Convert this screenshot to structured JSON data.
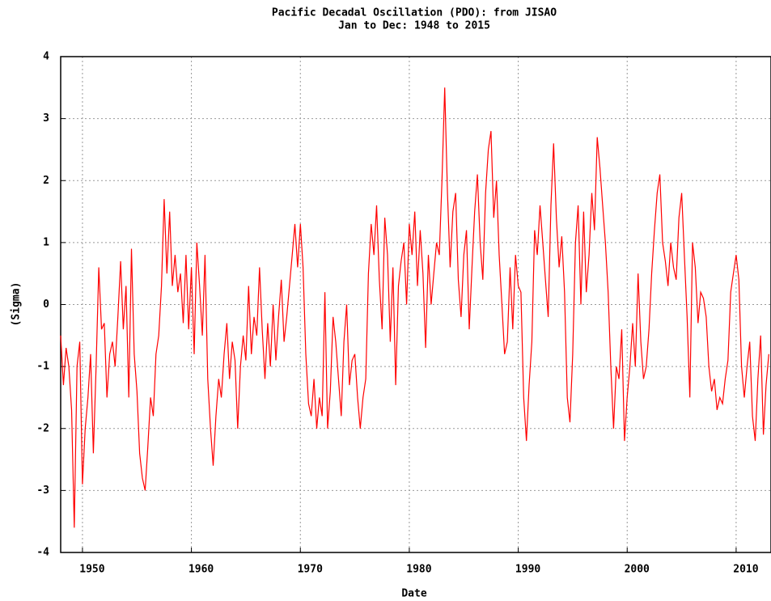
{
  "chart_data": {
    "type": "line",
    "title": "Pacific Decadal Oscillation (PDO): from JISAO",
    "subtitle": "Jan to Dec: 1948 to 2015",
    "x_label": "Date",
    "y_label": "(Sigma)",
    "xlim": [
      1948,
      2013.2
    ],
    "ylim": [
      -4,
      4
    ],
    "xticks": [
      1950,
      1960,
      1970,
      1980,
      1990,
      2000,
      2010
    ],
    "yticks": [
      -4,
      -3,
      -2,
      -1,
      0,
      1,
      2,
      3,
      4
    ],
    "grid": true,
    "x": [
      1948,
      1948.25,
      1948.5,
      1948.75,
      1949,
      1949.25,
      1949.5,
      1949.75,
      1950,
      1950.25,
      1950.5,
      1950.75,
      1951,
      1951.25,
      1951.5,
      1951.75,
      1952,
      1952.25,
      1952.5,
      1952.75,
      1953,
      1953.25,
      1953.5,
      1953.75,
      1954,
      1954.25,
      1954.5,
      1954.75,
      1955,
      1955.25,
      1955.5,
      1955.75,
      1956,
      1956.25,
      1956.5,
      1956.75,
      1957,
      1957.25,
      1957.5,
      1957.75,
      1958,
      1958.25,
      1958.5,
      1958.75,
      1959,
      1959.25,
      1959.5,
      1959.75,
      1960,
      1960.25,
      1960.5,
      1960.75,
      1961,
      1961.25,
      1961.5,
      1961.75,
      1962,
      1962.25,
      1962.5,
      1962.75,
      1963,
      1963.25,
      1963.5,
      1963.75,
      1964,
      1964.25,
      1964.5,
      1964.75,
      1965,
      1965.25,
      1965.5,
      1965.75,
      1966,
      1966.25,
      1966.5,
      1966.75,
      1967,
      1967.25,
      1967.5,
      1967.75,
      1968,
      1968.25,
      1968.5,
      1968.75,
      1969,
      1969.25,
      1969.5,
      1969.75,
      1970,
      1970.25,
      1970.5,
      1970.75,
      1971,
      1971.25,
      1971.5,
      1971.75,
      1972,
      1972.25,
      1972.5,
      1972.75,
      1973,
      1973.25,
      1973.5,
      1973.75,
      1974,
      1974.25,
      1974.5,
      1974.75,
      1975,
      1975.25,
      1975.5,
      1975.75,
      1976,
      1976.25,
      1976.5,
      1976.75,
      1977,
      1977.25,
      1977.5,
      1977.75,
      1978,
      1978.25,
      1978.5,
      1978.75,
      1979,
      1979.25,
      1979.5,
      1979.75,
      1980,
      1980.25,
      1980.5,
      1980.75,
      1981,
      1981.25,
      1981.5,
      1981.75,
      1982,
      1982.25,
      1982.5,
      1982.75,
      1983,
      1983.25,
      1983.5,
      1983.75,
      1984,
      1984.25,
      1984.5,
      1984.75,
      1985,
      1985.25,
      1985.5,
      1985.75,
      1986,
      1986.25,
      1986.5,
      1986.75,
      1987,
      1987.25,
      1987.5,
      1987.75,
      1988,
      1988.25,
      1988.5,
      1988.75,
      1989,
      1989.25,
      1989.5,
      1989.75,
      1990,
      1990.25,
      1990.5,
      1990.75,
      1991,
      1991.25,
      1991.5,
      1991.75,
      1992,
      1992.25,
      1992.5,
      1992.75,
      1993,
      1993.25,
      1993.5,
      1993.75,
      1994,
      1994.25,
      1994.5,
      1994.75,
      1995,
      1995.25,
      1995.5,
      1995.75,
      1996,
      1996.25,
      1996.5,
      1996.75,
      1997,
      1997.25,
      1997.5,
      1997.75,
      1998,
      1998.25,
      1998.5,
      1998.75,
      1999,
      1999.25,
      1999.5,
      1999.75,
      2000,
      2000.25,
      2000.5,
      2000.75,
      2001,
      2001.25,
      2001.5,
      2001.75,
      2002,
      2002.25,
      2002.5,
      2002.75,
      2003,
      2003.25,
      2003.5,
      2003.75,
      2004,
      2004.25,
      2004.5,
      2004.75,
      2005,
      2005.25,
      2005.5,
      2005.75,
      2006,
      2006.25,
      2006.5,
      2006.75,
      2007,
      2007.25,
      2007.5,
      2007.75,
      2008,
      2008.25,
      2008.5,
      2008.75,
      2009,
      2009.25,
      2009.5,
      2009.75,
      2010,
      2010.25,
      2010.5,
      2010.75,
      2011,
      2011.25,
      2011.5,
      2011.75,
      2012,
      2012.25,
      2012.5,
      2012.75,
      2013
    ],
    "series": [
      {
        "name": "PDO",
        "color": "#ff0000",
        "values": [
          -0.5,
          -1.3,
          -0.7,
          -1.0,
          -1.7,
          -3.6,
          -1.0,
          -0.6,
          -2.9,
          -2.0,
          -1.5,
          -0.8,
          -2.4,
          -1.0,
          0.6,
          -0.4,
          -0.3,
          -1.5,
          -0.8,
          -0.6,
          -1.0,
          -0.2,
          0.7,
          -0.4,
          0.3,
          -1.5,
          0.9,
          -0.8,
          -1.4,
          -2.4,
          -2.8,
          -3.0,
          -2.3,
          -1.5,
          -1.8,
          -0.8,
          -0.5,
          0.3,
          1.7,
          0.5,
          1.5,
          0.3,
          0.8,
          0.2,
          0.5,
          -0.3,
          0.8,
          -0.4,
          0.6,
          -0.8,
          1.0,
          0.3,
          -0.5,
          0.8,
          -1.2,
          -2.0,
          -2.6,
          -1.8,
          -1.2,
          -1.5,
          -0.8,
          -0.3,
          -1.2,
          -0.6,
          -0.9,
          -2.0,
          -1.0,
          -0.5,
          -0.9,
          0.3,
          -0.8,
          -0.2,
          -0.5,
          0.6,
          -0.4,
          -1.2,
          -0.3,
          -1.0,
          0.0,
          -0.9,
          -0.2,
          0.4,
          -0.6,
          -0.2,
          0.3,
          0.8,
          1.3,
          0.6,
          1.3,
          0.6,
          -0.8,
          -1.6,
          -1.8,
          -1.2,
          -2.0,
          -1.5,
          -1.8,
          0.2,
          -2.0,
          -1.4,
          -0.2,
          -0.6,
          -1.2,
          -1.8,
          -0.6,
          0.0,
          -1.3,
          -0.9,
          -0.8,
          -1.5,
          -2.0,
          -1.5,
          -1.2,
          0.5,
          1.3,
          0.8,
          1.6,
          0.4,
          -0.4,
          1.4,
          0.8,
          -0.6,
          0.6,
          -1.3,
          0.3,
          0.7,
          1.0,
          0.0,
          1.3,
          0.8,
          1.5,
          0.3,
          1.2,
          0.5,
          -0.7,
          0.8,
          0.0,
          0.5,
          1.0,
          0.8,
          2.0,
          3.5,
          1.8,
          0.6,
          1.5,
          1.8,
          0.4,
          -0.2,
          0.8,
          1.2,
          -0.4,
          0.6,
          1.5,
          2.1,
          1.0,
          0.4,
          1.8,
          2.5,
          2.8,
          1.4,
          2.0,
          0.8,
          0.0,
          -0.8,
          -0.6,
          0.6,
          -0.4,
          0.8,
          0.3,
          0.2,
          -1.5,
          -2.2,
          -1.3,
          -0.6,
          1.2,
          0.8,
          1.6,
          1.0,
          0.4,
          -0.2,
          1.6,
          2.6,
          1.4,
          0.6,
          1.1,
          0.2,
          -1.5,
          -1.9,
          -0.8,
          1.0,
          1.6,
          0.0,
          1.5,
          0.2,
          0.8,
          1.8,
          1.2,
          2.7,
          2.2,
          1.6,
          1.0,
          0.2,
          -1.0,
          -2.0,
          -1.0,
          -1.2,
          -0.4,
          -2.2,
          -1.5,
          -1.0,
          -0.3,
          -1.0,
          0.5,
          -0.6,
          -1.2,
          -1.0,
          -0.4,
          0.5,
          1.2,
          1.8,
          2.1,
          1.0,
          0.7,
          0.3,
          1.0,
          0.6,
          0.4,
          1.4,
          1.8,
          0.8,
          -0.2,
          -1.5,
          1.0,
          0.6,
          -0.3,
          0.2,
          0.1,
          -0.2,
          -1.0,
          -1.4,
          -1.2,
          -1.7,
          -1.5,
          -1.6,
          -1.2,
          -0.9,
          0.2,
          0.5,
          0.8,
          0.4,
          -1.0,
          -1.5,
          -1.0,
          -0.6,
          -1.8,
          -2.2,
          -1.2,
          -0.5,
          -2.1,
          -1.3,
          -0.8
        ]
      }
    ]
  }
}
